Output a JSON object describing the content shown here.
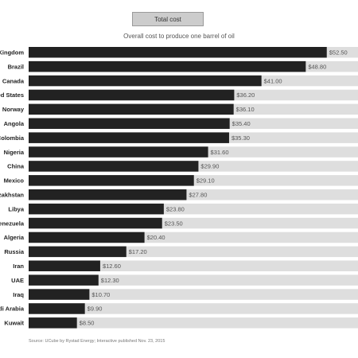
{
  "tab": {
    "label": "Total cost"
  },
  "colors": {
    "bar": "#222222",
    "track": "#dedede",
    "tab_bg": "#cccccc"
  },
  "chart_data": {
    "type": "bar",
    "orientation": "horizontal",
    "title": "Overall cost to produce one barrel of oil",
    "xlim": [
      0,
      58
    ],
    "categories": [
      "United Kingdom",
      "Brazil",
      "Canada",
      "United States",
      "Norway",
      "Angola",
      "Colombia",
      "Nigeria",
      "China",
      "Mexico",
      "Kazakhstan",
      "Libya",
      "Venezuela",
      "Algeria",
      "Russia",
      "Iran",
      "UAE",
      "Iraq",
      "Saudi Arabia",
      "Kuwait"
    ],
    "values": [
      52.5,
      48.8,
      41.0,
      36.2,
      36.1,
      35.4,
      35.3,
      31.6,
      29.9,
      29.1,
      27.8,
      23.8,
      23.5,
      20.4,
      17.2,
      12.6,
      12.3,
      10.7,
      9.9,
      8.5
    ],
    "value_labels": [
      "$52.50",
      "$48.80",
      "$41.00",
      "$36.20",
      "$36.10",
      "$35.40",
      "$35.30",
      "$31.60",
      "$29.90",
      "$29.10",
      "$27.80",
      "$23.80",
      "$23.50",
      "$20.40",
      "$17.20",
      "$12.60",
      "$12.30",
      "$10.70",
      "$9.90",
      "$8.50"
    ],
    "source": "Source: UCube by Rystad Energy; Interactive published Nov. 23, 2015"
  }
}
